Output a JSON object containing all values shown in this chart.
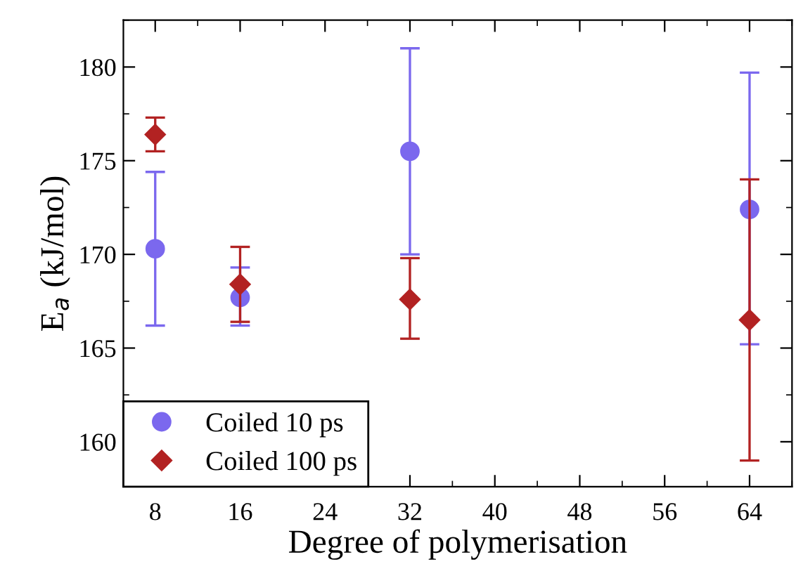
{
  "chart_data": {
    "type": "scatter",
    "xlabel": "Degree of polymerisation",
    "ylabel": "E$_{a}$ (kJ/mol)",
    "xlim": [
      5,
      68
    ],
    "xticks": [
      8,
      16,
      24,
      32,
      40,
      48,
      56,
      64
    ],
    "ylim": [
      157.6,
      182.5
    ],
    "yticks": [
      160,
      165,
      170,
      175,
      180
    ],
    "legend": "bottom left",
    "grid": false,
    "series": [
      {
        "name": "Coiled 10 ps",
        "color": "#7b68ee",
        "marker": "circle",
        "x": [
          8,
          16,
          32,
          64
        ],
        "values": [
          170.3,
          167.7,
          175.5,
          172.4
        ],
        "errors": [
          [
            166.2,
            174.4
          ],
          [
            166.2,
            169.3
          ],
          [
            170.0,
            181.0
          ],
          [
            165.2,
            179.7
          ]
        ]
      },
      {
        "name": "Coiled 100 ps",
        "color": "#b22222",
        "marker": "diamond",
        "x": [
          8,
          16,
          32,
          64
        ],
        "values": [
          176.4,
          168.4,
          167.6,
          166.5
        ],
        "errors": [
          [
            175.5,
            177.3
          ],
          [
            166.4,
            170.4
          ],
          [
            165.5,
            169.8
          ],
          [
            159.0,
            174.0
          ]
        ]
      }
    ]
  }
}
